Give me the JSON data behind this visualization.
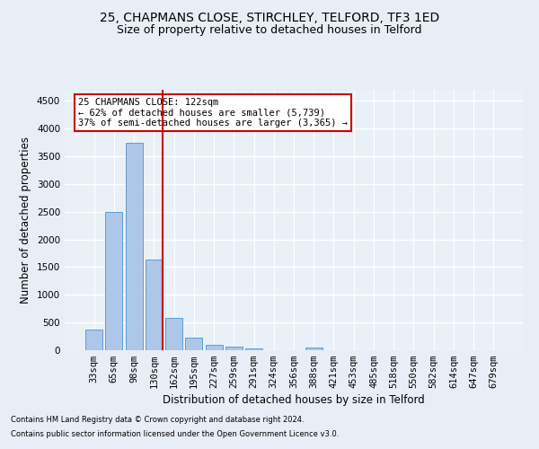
{
  "title_line1": "25, CHAPMANS CLOSE, STIRCHLEY, TELFORD, TF3 1ED",
  "title_line2": "Size of property relative to detached houses in Telford",
  "xlabel": "Distribution of detached houses by size in Telford",
  "ylabel": "Number of detached properties",
  "footnote1": "Contains HM Land Registry data © Crown copyright and database right 2024.",
  "footnote2": "Contains public sector information licensed under the Open Government Licence v3.0.",
  "categories": [
    "33sqm",
    "65sqm",
    "98sqm",
    "130sqm",
    "162sqm",
    "195sqm",
    "227sqm",
    "259sqm",
    "291sqm",
    "324sqm",
    "356sqm",
    "388sqm",
    "421sqm",
    "453sqm",
    "485sqm",
    "518sqm",
    "550sqm",
    "582sqm",
    "614sqm",
    "647sqm",
    "679sqm"
  ],
  "values": [
    370,
    2500,
    3750,
    1640,
    580,
    220,
    105,
    60,
    40,
    0,
    0,
    50,
    0,
    0,
    0,
    0,
    0,
    0,
    0,
    0,
    0
  ],
  "bar_color": "#aec6e8",
  "bar_edgecolor": "#5a9fd4",
  "vline_color": "#cc0000",
  "annotation_line1": "25 CHAPMANS CLOSE: 122sqm",
  "annotation_line2": "← 62% of detached houses are smaller (5,739)",
  "annotation_line3": "37% of semi-detached houses are larger (3,365) →",
  "annotation_box_color": "#ffffff",
  "annotation_box_edgecolor": "#cc0000",
  "ylim": [
    0,
    4700
  ],
  "yticks": [
    0,
    500,
    1000,
    1500,
    2000,
    2500,
    3000,
    3500,
    4000,
    4500
  ],
  "bg_color": "#e8eef5",
  "plot_bg_color": "#eaf0f8",
  "grid_color": "#ffffff",
  "title_fontsize": 10,
  "subtitle_fontsize": 9,
  "axis_label_fontsize": 8.5,
  "tick_fontsize": 7.5,
  "footnote_fontsize": 6
}
